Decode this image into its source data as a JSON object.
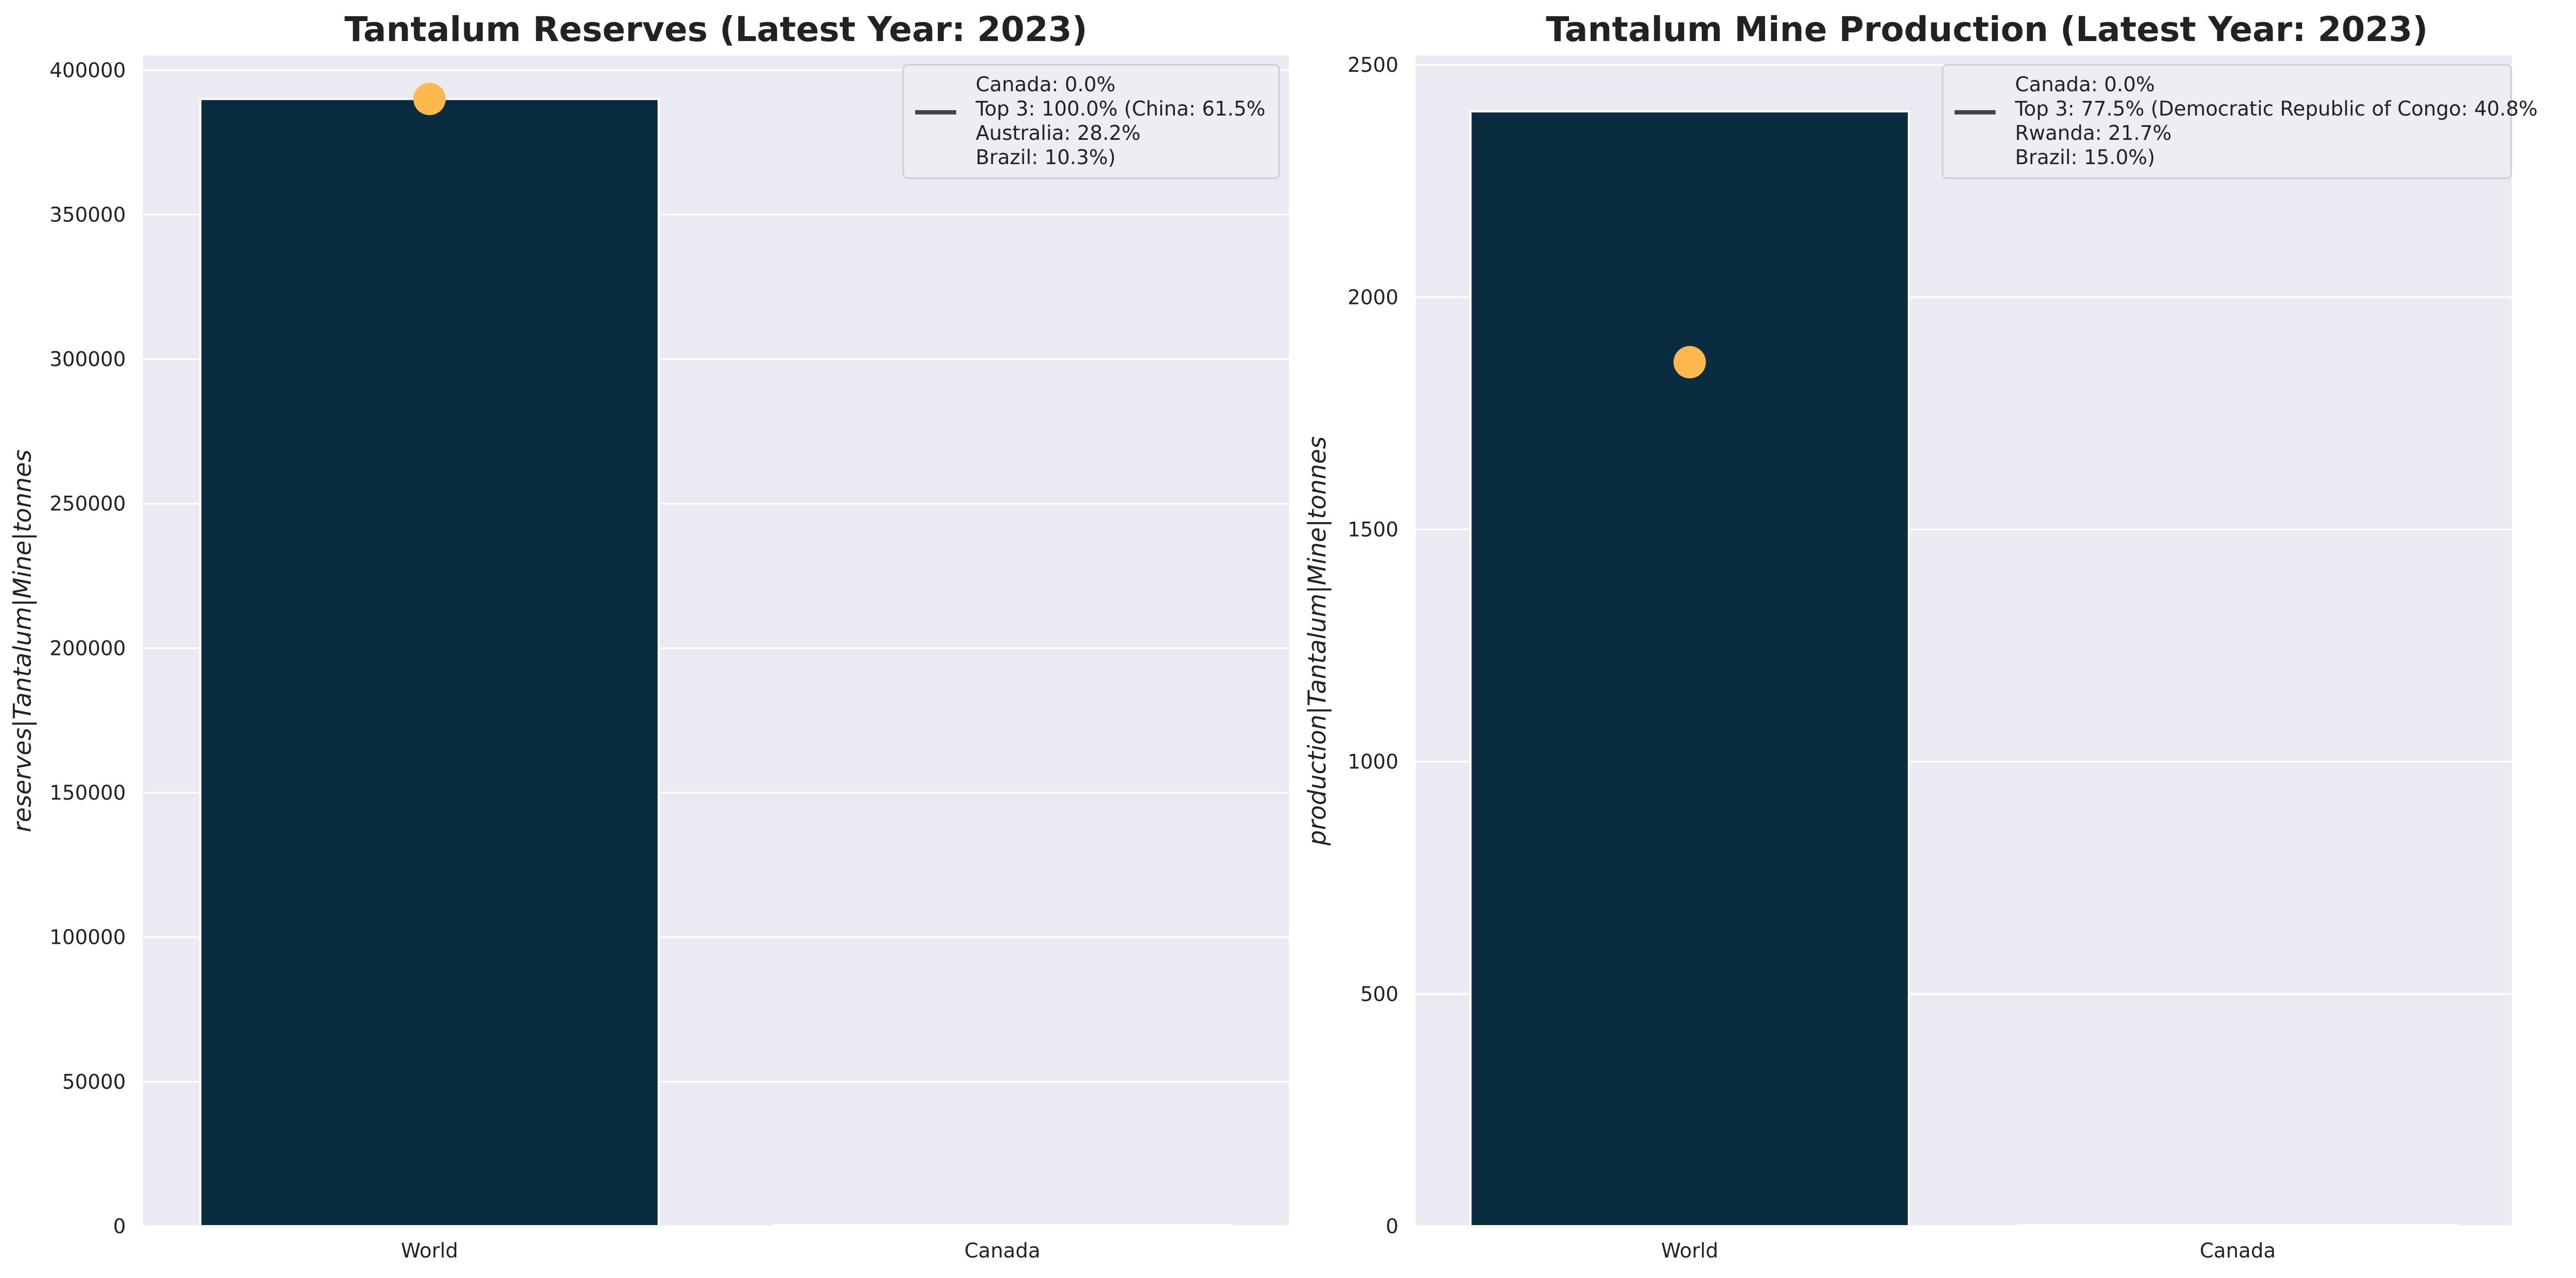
{
  "charts": [
    {
      "title": "Tantalum Reserves (Latest Year: 2023)",
      "ylabel": "reserves|Tantalum|Mine|tonnes",
      "legend_lines": [
        "Canada: 0.0%",
        "Top 3: 100.0% (China: 61.5%",
        "Australia: 28.2%",
        "Brazil: 10.3%)"
      ]
    },
    {
      "title": "Tantalum Mine Production (Latest Year: 2023)",
      "ylabel": "production|Tantalum|Mine|tonnes",
      "legend_lines": [
        "Canada: 0.0%",
        "Top 3: 77.5% (Democratic Republic of Congo: 40.8%",
        "Rwanda: 21.7%",
        "Brazil: 15.0%)"
      ]
    }
  ],
  "chart_data": [
    {
      "type": "bar",
      "title": "Tantalum Reserves (Latest Year: 2023)",
      "xlabel": "",
      "ylabel": "reserves|Tantalum|Mine|tonnes",
      "categories": [
        "World",
        "Canada"
      ],
      "values": [
        390000,
        0
      ],
      "marker": {
        "category": "World",
        "value": 390000
      },
      "ylim": [
        0,
        405000
      ],
      "yticks": [
        0,
        50000,
        100000,
        150000,
        200000,
        250000,
        300000,
        350000,
        400000
      ],
      "grid": true,
      "legend_position": "top-right"
    },
    {
      "type": "bar",
      "title": "Tantalum Mine Production (Latest Year: 2023)",
      "xlabel": "",
      "ylabel": "production|Tantalum|Mine|tonnes",
      "categories": [
        "World",
        "Canada"
      ],
      "values": [
        2400,
        0
      ],
      "marker": {
        "category": "World",
        "value": 1860
      },
      "ylim": [
        0,
        2520
      ],
      "yticks": [
        0,
        500,
        1000,
        1500,
        2000,
        2500
      ],
      "grid": true,
      "legend_position": "top-right"
    }
  ],
  "colors": {
    "bar": "#0a2c40",
    "marker": "#ffb84d",
    "plot_bg": "#eaeaf2",
    "grid": "#ffffff",
    "legend_line": "#444444",
    "text": "#222222"
  }
}
